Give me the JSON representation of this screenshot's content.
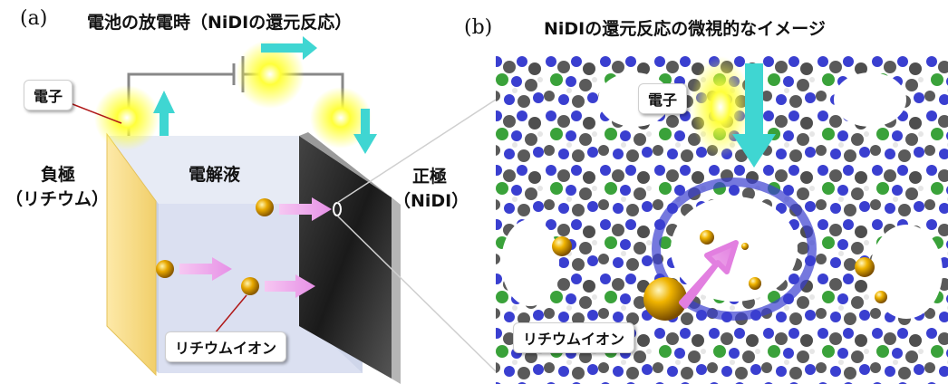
{
  "panel_a": {
    "letter": "(a)",
    "title": "電池の放電時（NiDIの還元反応）",
    "electron_label": "電子",
    "negative_label_line1": "負極",
    "negative_label_line2": "（リチウム）",
    "electrolyte_label": "電解液",
    "positive_label_line1": "正極",
    "positive_label_line2": "（NiDI）",
    "lithium_ion_label": "リチウムイオン"
  },
  "panel_b": {
    "letter": "(b)",
    "title": "NiDIの還元反応の微視的なイメージ",
    "electron_label": "電子",
    "lithium_ion_label": "リチウムイオン"
  },
  "colors": {
    "glow": "#ffff3a",
    "electron_arrow": "#3fd6d2",
    "ion_arrow": "#f0a8ef",
    "lithium_ion": "#e0a000",
    "nitrogen_atom": "#3a3fd0",
    "carbon_atom": "#5a5a5a",
    "nickel_atom": "#3aa23a",
    "electrolyte": "#dbe1f0",
    "negative_electrode": "#f7dc8a",
    "positive_electrode": "#222222"
  }
}
